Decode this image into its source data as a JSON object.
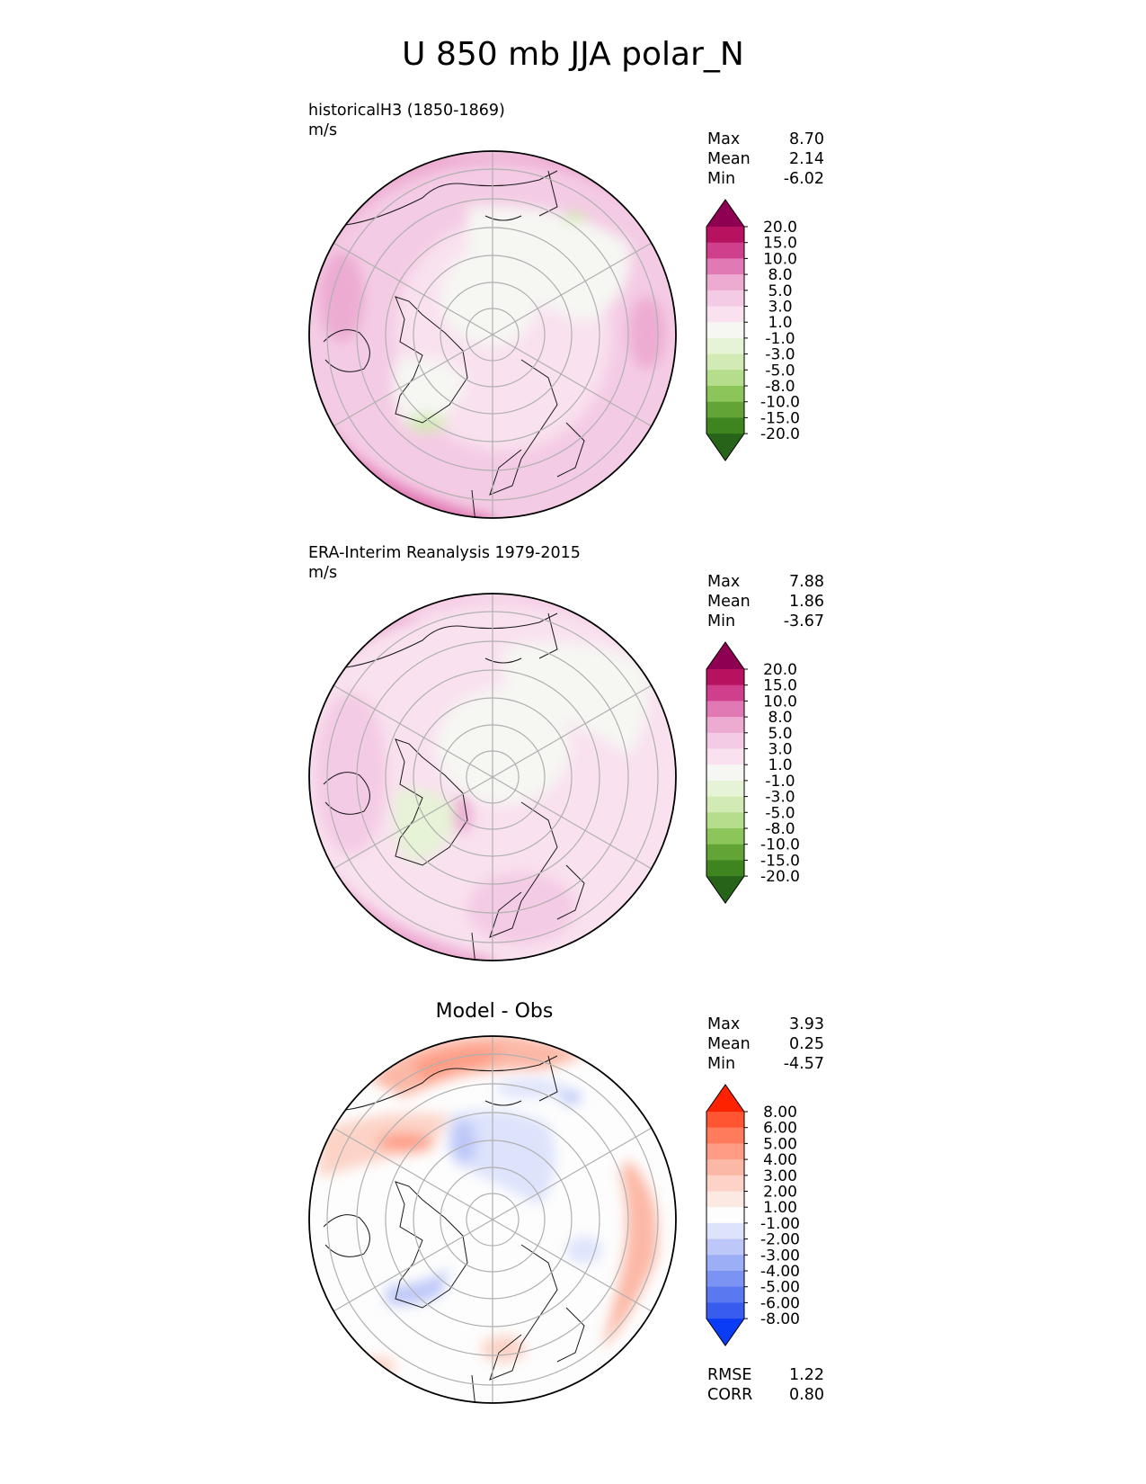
{
  "title": "U 850 mb JJA polar_N",
  "panels": [
    {
      "id": "test",
      "label_line1": "historicalH3 (1850-1869)",
      "label_line2": "m/s",
      "stats": [
        {
          "label": "Max",
          "value": "8.70"
        },
        {
          "label": "Mean",
          "value": "2.14"
        },
        {
          "label": "Min",
          "value": "-6.02"
        }
      ],
      "colorbar_levels": [
        "20.0",
        "15.0",
        "10.0",
        "8.0",
        "5.0",
        "3.0",
        "1.0",
        "-1.0",
        "-3.0",
        "-5.0",
        "-8.0",
        "-10.0",
        "-15.0",
        "-20.0"
      ],
      "colorbar_colors": [
        "#8e0152",
        "#b7125f",
        "#cf3f8b",
        "#e17ab4",
        "#edabd2",
        "#f4cbe4",
        "#f9e1ef",
        "#f6f6f3",
        "#e6f3d6",
        "#d2ebb4",
        "#b5de8c",
        "#8cc65b",
        "#63a437",
        "#3f851f",
        "#276419"
      ]
    },
    {
      "id": "ref",
      "label_line1": "ERA-Interim Reanalysis 1979-2015",
      "label_line2": "m/s",
      "stats": [
        {
          "label": "Max",
          "value": "7.88"
        },
        {
          "label": "Mean",
          "value": "1.86"
        },
        {
          "label": "Min",
          "value": "-3.67"
        }
      ],
      "colorbar_levels": [
        "20.0",
        "15.0",
        "10.0",
        "8.0",
        "5.0",
        "3.0",
        "1.0",
        "-1.0",
        "-3.0",
        "-5.0",
        "-8.0",
        "-10.0",
        "-15.0",
        "-20.0"
      ],
      "colorbar_colors": [
        "#8e0152",
        "#b7125f",
        "#cf3f8b",
        "#e17ab4",
        "#edabd2",
        "#f4cbe4",
        "#f9e1ef",
        "#f6f6f3",
        "#e6f3d6",
        "#d2ebb4",
        "#b5de8c",
        "#8cc65b",
        "#63a437",
        "#3f851f",
        "#276419"
      ]
    },
    {
      "id": "diff",
      "center_title": "Model - Obs",
      "stats": [
        {
          "label": "Max",
          "value": "3.93"
        },
        {
          "label": "Mean",
          "value": "0.25"
        },
        {
          "label": "Min",
          "value": "-4.57"
        }
      ],
      "extra_stats": [
        {
          "label": "RMSE",
          "value": "1.22"
        },
        {
          "label": "CORR",
          "value": "0.80"
        }
      ],
      "colorbar_levels": [
        "8.00",
        "6.00",
        "5.00",
        "4.00",
        "3.00",
        "2.00",
        "1.00",
        "-1.00",
        "-2.00",
        "-3.00",
        "-4.00",
        "-5.00",
        "-6.00",
        "-8.00"
      ],
      "colorbar_colors": [
        "#ff2200",
        "#ff5533",
        "#ff7b5c",
        "#fe9c85",
        "#fcb8a6",
        "#fcd3c6",
        "#fbe9e2",
        "#fdfdfd",
        "#dde3fb",
        "#bdc8f8",
        "#9caef6",
        "#7b93f3",
        "#5a78f0",
        "#385cee",
        "#0a3cf5"
      ]
    }
  ],
  "chart_data": [
    {
      "type": "heatmap",
      "title": "historicalH3 (1850-1869)",
      "units": "m/s",
      "projection": "north polar stereographic",
      "variable": "U 850 mb JJA",
      "max": 8.7,
      "mean": 2.14,
      "min": -6.02,
      "levels": [
        -20.0,
        -15.0,
        -10.0,
        -8.0,
        -5.0,
        -3.0,
        -1.0,
        1.0,
        3.0,
        5.0,
        8.0,
        10.0,
        15.0,
        20.0
      ]
    },
    {
      "type": "heatmap",
      "title": "ERA-Interim Reanalysis 1979-2015",
      "units": "m/s",
      "projection": "north polar stereographic",
      "variable": "U 850 mb JJA",
      "max": 7.88,
      "mean": 1.86,
      "min": -3.67,
      "levels": [
        -20.0,
        -15.0,
        -10.0,
        -8.0,
        -5.0,
        -3.0,
        -1.0,
        1.0,
        3.0,
        5.0,
        8.0,
        10.0,
        15.0,
        20.0
      ]
    },
    {
      "type": "heatmap",
      "title": "Model - Obs",
      "projection": "north polar stereographic",
      "max": 3.93,
      "mean": 0.25,
      "min": -4.57,
      "rmse": 1.22,
      "corr": 0.8,
      "levels": [
        -8.0,
        -6.0,
        -5.0,
        -4.0,
        -3.0,
        -2.0,
        -1.0,
        1.0,
        2.0,
        3.0,
        4.0,
        5.0,
        6.0,
        8.0
      ]
    }
  ]
}
